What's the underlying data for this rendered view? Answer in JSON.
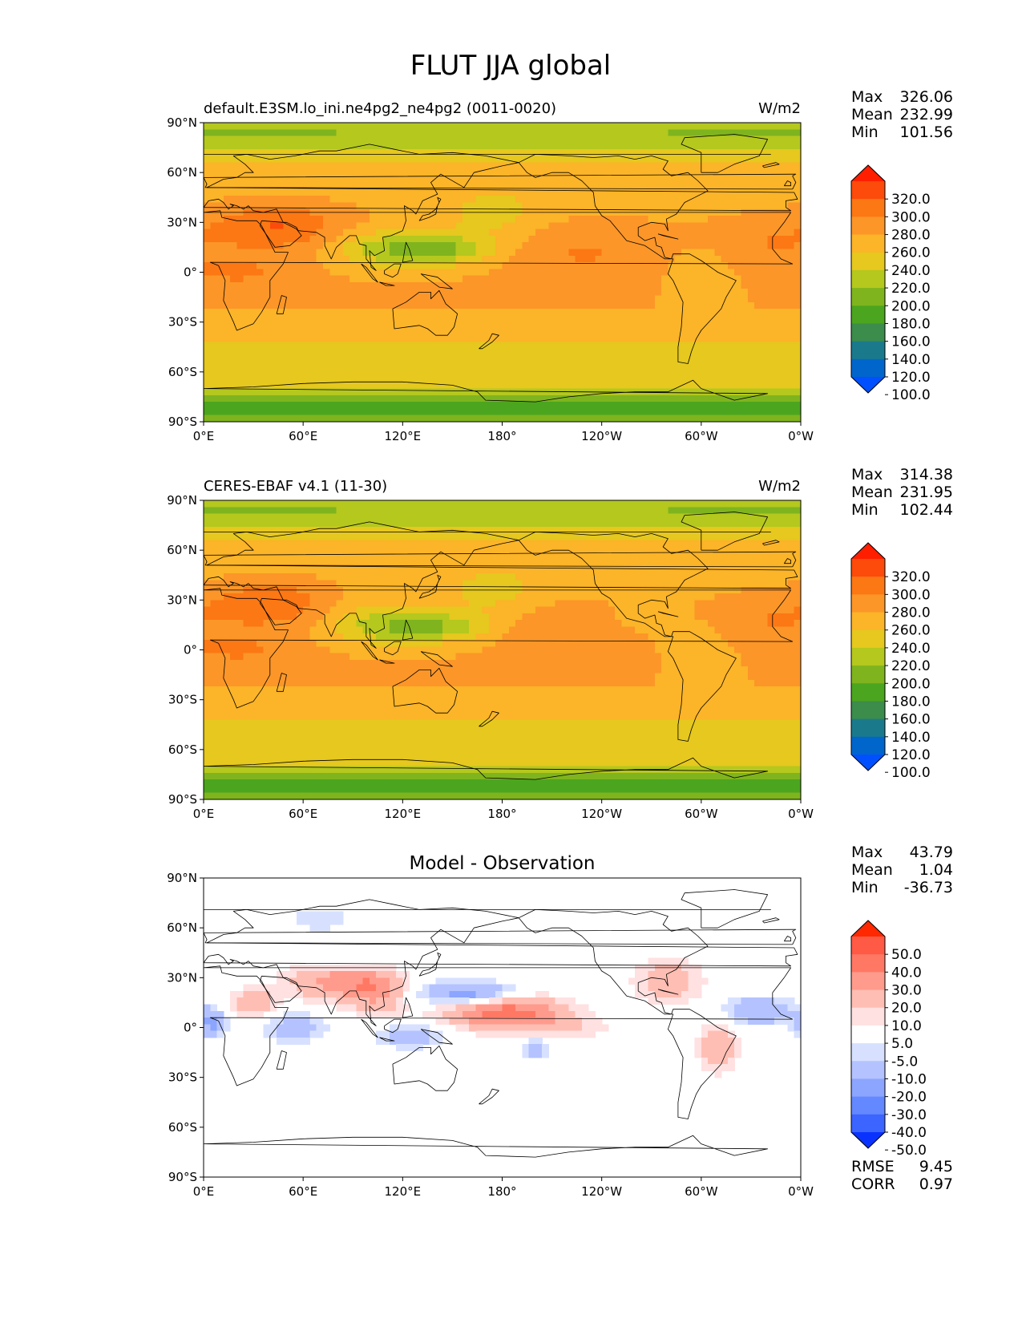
{
  "figure_title": "FLUT JJA global",
  "x_tick_labels": [
    "0°E",
    "60°E",
    "120°E",
    "180°",
    "120°W",
    "60°W",
    "0°W"
  ],
  "y_tick_labels": [
    "90°N",
    "60°N",
    "30°N",
    "0°",
    "30°S",
    "60°S",
    "90°S"
  ],
  "stat_labels": {
    "max": "Max",
    "mean": "Mean",
    "min": "Min",
    "rmse": "RMSE",
    "corr": "CORR"
  },
  "colors": {
    "abs_levels": [
      "#0050ff",
      "#0066cc",
      "#1a7a8c",
      "#3c8c4c",
      "#4ca51e",
      "#7fb41e",
      "#b4c81e",
      "#e6c81e",
      "#fcb428",
      "#fc9628",
      "#fc7814",
      "#fc4b0a",
      "#ff1e00"
    ],
    "diff_levels": [
      "#0a32ff",
      "#3c64ff",
      "#6488ff",
      "#8ca5ff",
      "#b4c3ff",
      "#d7e1ff",
      "#ffffff",
      "#ffe1e1",
      "#ffbeb4",
      "#ff9b8c",
      "#ff7864",
      "#ff5a46",
      "#ff2800"
    ],
    "land_outline": "#000000"
  },
  "chart_data": [
    {
      "type": "heatmap",
      "title": "default.E3SM.lo_ini.ne4pg2_ne4pg2 (0011-0020)",
      "units": "W/m2",
      "xlim": [
        0,
        360
      ],
      "ylim": [
        -90,
        90
      ],
      "stats": {
        "max": "326.06",
        "mean": "232.99",
        "min": "101.56"
      },
      "colorbar_labels": [
        "320.0",
        "300.0",
        "280.0",
        "260.0",
        "240.0",
        "220.0",
        "200.0",
        "180.0",
        "160.0",
        "140.0",
        "120.0",
        "100.0"
      ]
    },
    {
      "type": "heatmap",
      "title": "CERES-EBAF v4.1 (11-30)",
      "units": "W/m2",
      "xlim": [
        0,
        360
      ],
      "ylim": [
        -90,
        90
      ],
      "stats": {
        "max": "314.38",
        "mean": "231.95",
        "min": "102.44"
      },
      "colorbar_labels": [
        "320.0",
        "300.0",
        "280.0",
        "260.0",
        "240.0",
        "220.0",
        "200.0",
        "180.0",
        "160.0",
        "140.0",
        "120.0",
        "100.0"
      ]
    },
    {
      "type": "heatmap",
      "title": "Model - Observation",
      "units": "",
      "xlim": [
        0,
        360
      ],
      "ylim": [
        -90,
        90
      ],
      "stats": {
        "max": "43.79",
        "mean": "1.04",
        "min": "-36.73",
        "rmse": "9.45",
        "corr": "0.97"
      },
      "colorbar_labels": [
        "50.0",
        "40.0",
        "30.0",
        "20.0",
        "10.0",
        "5.0",
        "-5.0",
        "-10.0",
        "-20.0",
        "-30.0",
        "-40.0",
        "-50.0"
      ]
    }
  ]
}
